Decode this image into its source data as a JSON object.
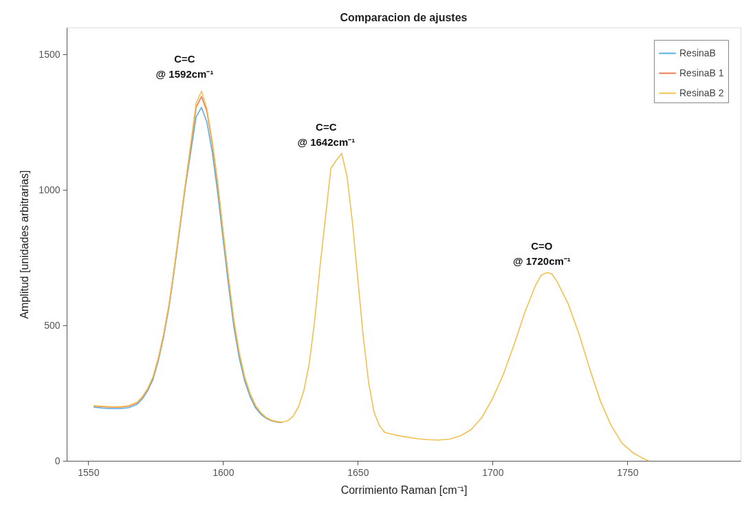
{
  "chart_data": {
    "type": "line",
    "title": "Comparacion de ajustes",
    "xlabel": "Corrimiento Raman [cm⁻¹]",
    "ylabel": "Amplitud [unidades arbitrarias]",
    "xlim": [
      1542,
      1792
    ],
    "ylim": [
      0,
      1600
    ],
    "xticks": [
      1550,
      1600,
      1650,
      1700,
      1750
    ],
    "yticks": [
      0,
      500,
      1000,
      1500
    ],
    "grid": false,
    "legend": "top right",
    "marker": "none",
    "line_style": "solid",
    "x": [
      1552,
      1555,
      1558,
      1562,
      1565,
      1568,
      1570,
      1572,
      1574,
      1576,
      1578,
      1580,
      1582,
      1584,
      1586,
      1588,
      1590,
      1592,
      1594,
      1596,
      1598,
      1600,
      1602,
      1604,
      1606,
      1608,
      1610,
      1612,
      1614,
      1616,
      1618,
      1620,
      1622,
      1624,
      1626,
      1628,
      1630,
      1632,
      1634,
      1636,
      1638,
      1640,
      1642,
      1644,
      1646,
      1648,
      1650,
      1652,
      1654,
      1656,
      1658,
      1660,
      1664,
      1668,
      1672,
      1676,
      1680,
      1684,
      1688,
      1692,
      1696,
      1700,
      1704,
      1708,
      1712,
      1716,
      1718,
      1720,
      1722,
      1724,
      1728,
      1732,
      1736,
      1740,
      1744,
      1748,
      1752,
      1756,
      1758
    ],
    "series": [
      {
        "name": "ResinaB",
        "color": "#5aaee0",
        "values": [
          198,
          195,
          193,
          193,
          196,
          208,
          228,
          258,
          300,
          370,
          460,
          570,
          710,
          860,
          1010,
          1140,
          1270,
          1305,
          1250,
          1140,
          990,
          820,
          650,
          495,
          380,
          295,
          238,
          196,
          172,
          157,
          148,
          143,
          142,
          null,
          null,
          null,
          null,
          null,
          null,
          null,
          null,
          null,
          null,
          null,
          null,
          null,
          null,
          null,
          null,
          null,
          null,
          null,
          null,
          null,
          null,
          null,
          null,
          null,
          null,
          null,
          null,
          null,
          null,
          null,
          null,
          null,
          null,
          null,
          null,
          null,
          null,
          null,
          null,
          null,
          null,
          null,
          null,
          null,
          null
        ]
      },
      {
        "name": "ResinaB 1",
        "color": "#e87a55",
        "values": [
          202,
          200,
          198,
          198,
          202,
          214,
          234,
          264,
          308,
          378,
          468,
          578,
          718,
          868,
          1018,
          1160,
          1305,
          1345,
          1290,
          1170,
          1020,
          845,
          675,
          515,
          397,
          308,
          248,
          203,
          177,
          159,
          149,
          144,
          142,
          null,
          null,
          null,
          null,
          null,
          null,
          null,
          null,
          null,
          null,
          null,
          null,
          null,
          null,
          null,
          null,
          null,
          null,
          null,
          null,
          null,
          null,
          null,
          null,
          null,
          null,
          null,
          null,
          null,
          null,
          null,
          null,
          null,
          null,
          null,
          null,
          null,
          null,
          null,
          null,
          null,
          null,
          null,
          null,
          null,
          null
        ]
      },
      {
        "name": "ResinaB 2",
        "color": "#f2c04e",
        "values": [
          204,
          202,
          200,
          200,
          204,
          216,
          236,
          266,
          310,
          380,
          470,
          580,
          720,
          870,
          1020,
          1170,
          1320,
          1365,
          1300,
          1180,
          1030,
          850,
          680,
          520,
          400,
          310,
          250,
          205,
          178,
          160,
          150,
          145,
          143,
          148,
          165,
          200,
          260,
          360,
          520,
          720,
          900,
          1080,
          1110,
          1135,
          1050,
          880,
          670,
          460,
          290,
          180,
          130,
          105,
          95,
          88,
          82,
          78,
          77,
          80,
          92,
          115,
          160,
          230,
          320,
          430,
          550,
          650,
          685,
          695,
          690,
          660,
          580,
          470,
          340,
          220,
          130,
          65,
          30,
          8,
          0
        ]
      }
    ],
    "annotations": [
      "C=C\n@ 1592cm⁻¹",
      "C=C\n@ 1642cm⁻¹",
      "C=O\n@ 1720cm⁻¹"
    ]
  }
}
